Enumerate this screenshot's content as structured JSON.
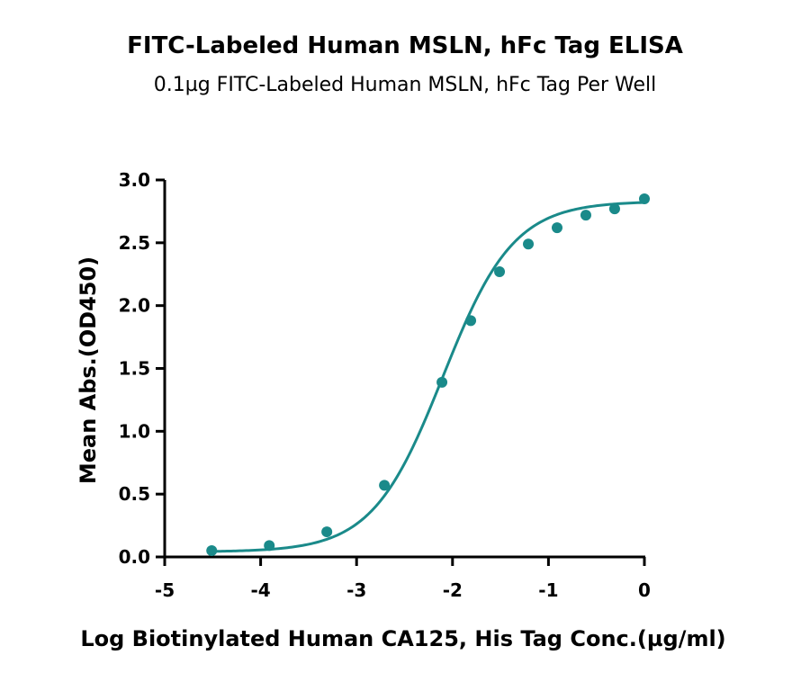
{
  "chart_data": {
    "type": "scatter",
    "title": "FITC-Labeled Human MSLN, hFc Tag ELISA",
    "subtitle": "0.1µg FITC-Labeled Human MSLN, hFc Tag Per Well",
    "xlabel": "Log Biotinylated Human CA125, His Tag Conc.(µg/ml)",
    "ylabel": "Mean Abs.(OD450)",
    "xlim": [
      -5,
      0
    ],
    "ylim": [
      0,
      3.0
    ],
    "x_ticks": [
      "-5",
      "-4",
      "-3",
      "-2",
      "-1",
      "0"
    ],
    "y_ticks": [
      "0.0",
      "0.5",
      "1.0",
      "1.5",
      "2.0",
      "2.5",
      "3.0"
    ],
    "grid": false,
    "legend": "none",
    "color": "#1a8a8a",
    "series": [
      {
        "x": [
          -4.51,
          -3.91,
          -3.31,
          -2.71,
          -2.11,
          -1.81,
          -1.51,
          -1.21,
          -0.91,
          -0.61,
          -0.31,
          0.0
        ],
        "y": [
          0.05,
          0.09,
          0.2,
          0.57,
          1.39,
          1.88,
          2.27,
          2.49,
          2.62,
          2.72,
          2.77,
          2.85
        ]
      }
    ],
    "fit_curve": {
      "model": "4PL",
      "bottom": 0.04,
      "top": 2.83,
      "logEC50": -2.1,
      "hill": 1.18
    }
  }
}
